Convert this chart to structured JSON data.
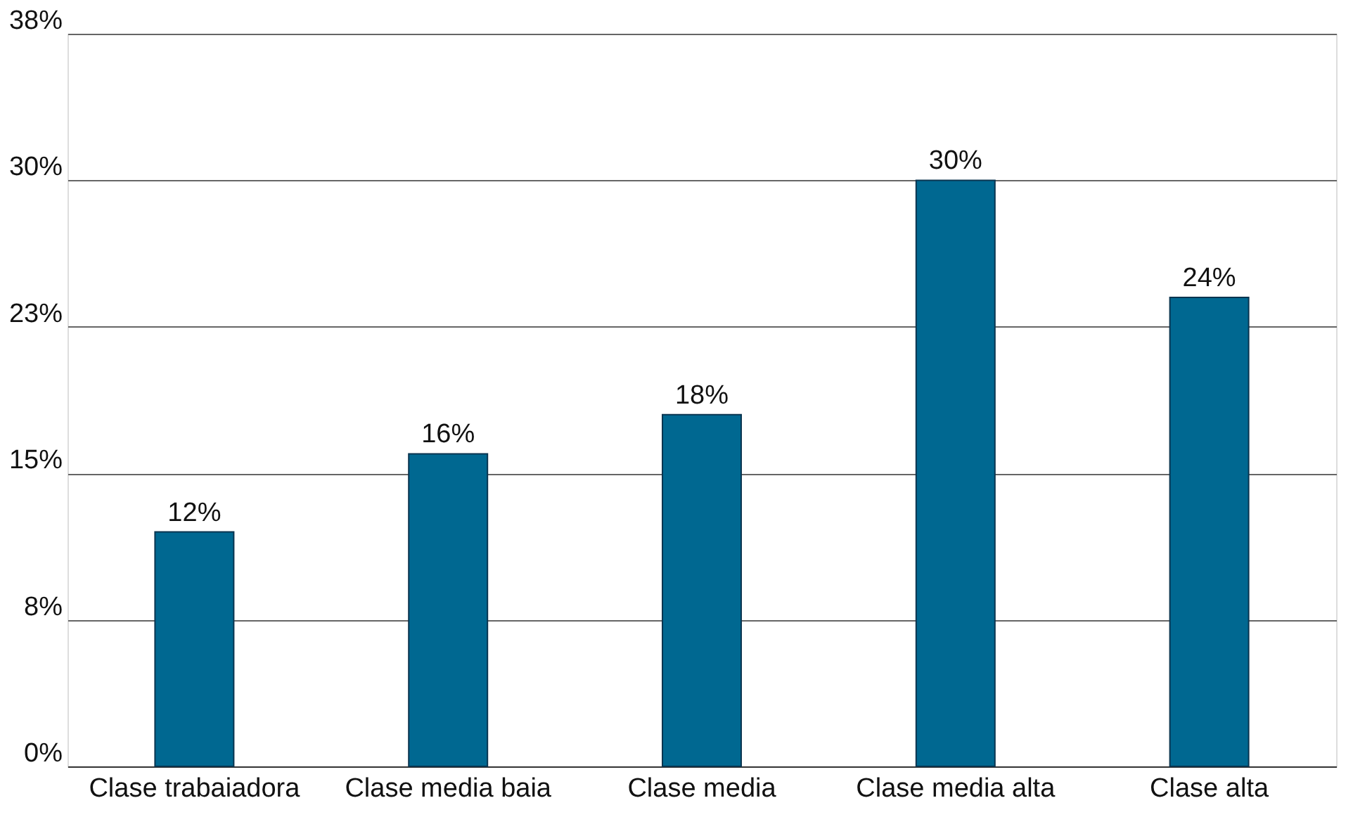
{
  "chart_data": {
    "type": "bar",
    "categories": [
      "Clase trabaiadora",
      "Clase media baia",
      "Clase media",
      "Clase media alta",
      "Clase alta"
    ],
    "values": [
      12,
      16,
      18,
      30,
      24
    ],
    "value_labels": [
      "12%",
      "16%",
      "18%",
      "30%",
      "24%"
    ],
    "color": "#006891",
    "ylim": [
      0,
      37.5
    ],
    "yticks": [
      {
        "value": 0,
        "label": "0%"
      },
      {
        "value": 7.5,
        "label": "8%"
      },
      {
        "value": 15,
        "label": "15%"
      },
      {
        "value": 22.5,
        "label": "23%"
      },
      {
        "value": 30,
        "label": "30%"
      },
      {
        "value": 37.5,
        "label": "38%"
      }
    ],
    "grid": "y"
  }
}
